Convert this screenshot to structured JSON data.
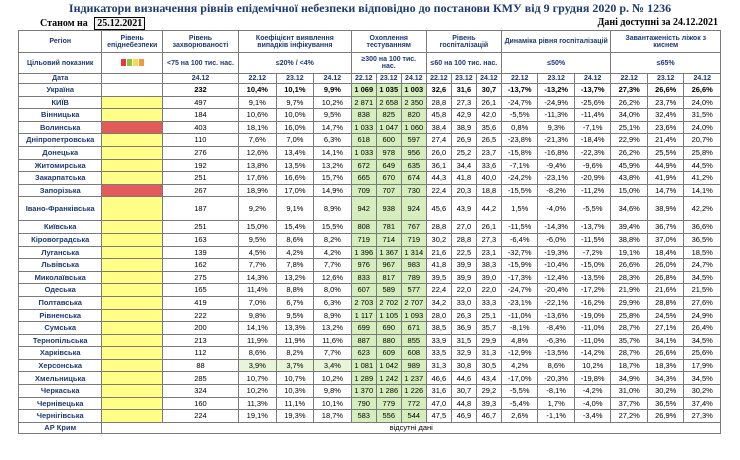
{
  "title": "Індикатори визначення рівнів епідемічної небезпеки відповідно до постанови КМУ від 9 грудня 2020 р. № 1236",
  "status": {
    "label": "Станом на",
    "date": "25.12.2021",
    "right": "Дані доступні за  24.12.2021"
  },
  "headers": {
    "region": "Регіон",
    "level": "Рівень епіднебезпеки",
    "incidence": "Рівень захворюваності",
    "detection": "Коефіцієнт виявлення випадків інфікування",
    "testing": "Охоплення тестуванням",
    "hospital": "Рівень госпіталізацій",
    "dynamics": "Динаміка рівня госпіталізацій",
    "beds": "Завантаженість ліжок з киснем"
  },
  "indicator_row": {
    "label": "Цільовий показник",
    "incidence": "<75 на 100 тис. нас.",
    "detection": "≤20% / <4%",
    "testing": "≥300 на 100 тис. нас.",
    "hospital": "≤60 на 100 тис. нас.",
    "dynamics": "≤50%",
    "beds": "≤65%",
    "level_colors": [
      "#e63b3b",
      "#8cc63f",
      "#ffd84a",
      "#f39c3b"
    ]
  },
  "date_row": {
    "label": "Дата",
    "incidence": "24.12",
    "detection": [
      "22.12",
      "23.12",
      "24.12"
    ],
    "testing": [
      "22.12",
      "23.12",
      "24.12"
    ],
    "hospital": [
      "22.12",
      "23.12",
      "24.12"
    ],
    "dynamics": [
      "22.12",
      "23.12",
      "24.12"
    ],
    "beds": [
      "22.12",
      "23.12",
      "24.12"
    ]
  },
  "rows": [
    {
      "name": "Україна",
      "level": "",
      "inc": "232",
      "det": [
        "10,4%",
        "10,1%",
        "9,9%"
      ],
      "test": [
        "1 069",
        "1 035",
        "1 003"
      ],
      "hosp": [
        "32,6",
        "31,6",
        "30,7"
      ],
      "dyn": [
        "-13,7%",
        "-13,2%",
        "-13,7%"
      ],
      "beds": [
        "27,3%",
        "26,6%",
        "26,6%"
      ]
    },
    {
      "name": "КИЇВ",
      "level": "yellow",
      "inc": "497",
      "det": [
        "9,1%",
        "9,7%",
        "10,2%"
      ],
      "test": [
        "2 871",
        "2 658",
        "2 350"
      ],
      "hosp": [
        "28,8",
        "27,3",
        "26,1"
      ],
      "dyn": [
        "-24,7%",
        "-24,9%",
        "-25,6%"
      ],
      "beds": [
        "26,2%",
        "23,7%",
        "24,0%"
      ]
    },
    {
      "name": "Вінницька",
      "level": "yellow",
      "inc": "184",
      "det": [
        "10,6%",
        "10,0%",
        "9,5%"
      ],
      "test": [
        "838",
        "825",
        "820"
      ],
      "hosp": [
        "45,8",
        "42,9",
        "42,0"
      ],
      "dyn": [
        "-5,5%",
        "-11,3%",
        "-11,4%"
      ],
      "beds": [
        "34,0%",
        "32,4%",
        "31,5%"
      ]
    },
    {
      "name": "Волинська",
      "level": "red",
      "inc": "403",
      "det": [
        "18,1%",
        "16,0%",
        "14,7%"
      ],
      "test": [
        "1 033",
        "1 047",
        "1 060"
      ],
      "hosp": [
        "38,4",
        "38,9",
        "35,6"
      ],
      "dyn": [
        "0,8%",
        "9,3%",
        "-7,1%"
      ],
      "beds": [
        "25,1%",
        "23,6%",
        "24,0%"
      ]
    },
    {
      "name": "Дніпропетровська",
      "level": "yellow",
      "inc": "110",
      "det": [
        "7,6%",
        "7,0%",
        "6,3%"
      ],
      "test": [
        "618",
        "600",
        "597"
      ],
      "hosp": [
        "27,4",
        "26,9",
        "26,5"
      ],
      "dyn": [
        "-23,8%",
        "-21,3%",
        "-18,4%"
      ],
      "beds": [
        "22,9%",
        "21,4%",
        "20,7%"
      ]
    },
    {
      "name": "Донецька",
      "level": "yellow",
      "inc": "276",
      "det": [
        "12,6%",
        "13,4%",
        "14,1%"
      ],
      "test": [
        "1 033",
        "978",
        "956"
      ],
      "hosp": [
        "26,0",
        "25,2",
        "23,7"
      ],
      "dyn": [
        "-15,8%",
        "-16,8%",
        "-22,3%"
      ],
      "beds": [
        "26,2%",
        "25,5%",
        "25,8%"
      ]
    },
    {
      "name": "Житомирська",
      "level": "yellow",
      "inc": "192",
      "det": [
        "13,8%",
        "13,5%",
        "13,2%"
      ],
      "test": [
        "672",
        "649",
        "635"
      ],
      "hosp": [
        "36,1",
        "34,4",
        "33,6"
      ],
      "dyn": [
        "-7,1%",
        "-9,4%",
        "-9,6%"
      ],
      "beds": [
        "45,9%",
        "44,9%",
        "44,5%"
      ]
    },
    {
      "name": "Закарпатська",
      "level": "yellow",
      "inc": "251",
      "det": [
        "17,6%",
        "16,6%",
        "15,7%"
      ],
      "test": [
        "665",
        "670",
        "674"
      ],
      "hosp": [
        "44,3",
        "41,8",
        "40,0"
      ],
      "dyn": [
        "-24,2%",
        "-23,1%",
        "-20,9%"
      ],
      "beds": [
        "43,8%",
        "41,9%",
        "41,2%"
      ]
    },
    {
      "name": "Запорізька",
      "level": "red",
      "inc": "267",
      "det": [
        "18,9%",
        "17,0%",
        "14,9%"
      ],
      "test": [
        "709",
        "707",
        "730"
      ],
      "hosp": [
        "22,4",
        "20,3",
        "18,8"
      ],
      "dyn": [
        "-15,5%",
        "-8,2%",
        "-11,2%"
      ],
      "beds": [
        "15,0%",
        "14,7%",
        "14,1%"
      ]
    },
    {
      "name": "Івано-Франківська",
      "level": "yellow",
      "inc": "187",
      "det": [
        "9,2%",
        "9,1%",
        "8,9%"
      ],
      "test": [
        "942",
        "938",
        "924"
      ],
      "hosp": [
        "45,6",
        "43,9",
        "44,2"
      ],
      "dyn": [
        "1,5%",
        "-4,0%",
        "-5,5%"
      ],
      "beds": [
        "34,6%",
        "38,9%",
        "42,2%"
      ],
      "tall": true
    },
    {
      "name": "Київська",
      "level": "yellow",
      "inc": "251",
      "det": [
        "15,0%",
        "15,4%",
        "15,5%"
      ],
      "test": [
        "808",
        "781",
        "767"
      ],
      "hosp": [
        "28,8",
        "27,0",
        "26,1"
      ],
      "dyn": [
        "-11,5%",
        "-14,3%",
        "-13,7%"
      ],
      "beds": [
        "39,4%",
        "36,7%",
        "36,6%"
      ]
    },
    {
      "name": "Кіровоградська",
      "level": "yellow",
      "inc": "163",
      "det": [
        "9,5%",
        "8,6%",
        "8,2%"
      ],
      "test": [
        "719",
        "714",
        "719"
      ],
      "hosp": [
        "30,2",
        "28,8",
        "27,3"
      ],
      "dyn": [
        "-6,4%",
        "-6,0%",
        "-11,5%"
      ],
      "beds": [
        "38,8%",
        "37,0%",
        "36,5%"
      ]
    },
    {
      "name": "Луганська",
      "level": "yellow",
      "inc": "139",
      "det": [
        "4,5%",
        "4,2%",
        "4,2%"
      ],
      "test": [
        "1 396",
        "1 367",
        "1 314"
      ],
      "hosp": [
        "21,6",
        "22,5",
        "23,1"
      ],
      "dyn": [
        "-32,7%",
        "-19,3%",
        "-7,2%"
      ],
      "beds": [
        "19,1%",
        "18,4%",
        "18,5%"
      ]
    },
    {
      "name": "Львівська",
      "level": "yellow",
      "inc": "162",
      "det": [
        "7,7%",
        "7,8%",
        "7,7%"
      ],
      "test": [
        "976",
        "967",
        "983"
      ],
      "hosp": [
        "41,8",
        "39,9",
        "38,3"
      ],
      "dyn": [
        "-15,9%",
        "-10,4%",
        "-15,0%"
      ],
      "beds": [
        "26,6%",
        "26,0%",
        "24,7%"
      ]
    },
    {
      "name": "Миколаївська",
      "level": "yellow",
      "inc": "275",
      "det": [
        "14,3%",
        "13,2%",
        "12,6%"
      ],
      "test": [
        "833",
        "817",
        "789"
      ],
      "hosp": [
        "39,5",
        "39,9",
        "39,0"
      ],
      "dyn": [
        "-17,3%",
        "-12,4%",
        "-13,5%"
      ],
      "beds": [
        "28,3%",
        "26,8%",
        "34,5%"
      ]
    },
    {
      "name": "Одеська",
      "level": "yellow",
      "inc": "165",
      "det": [
        "11,4%",
        "8,8%",
        "8,0%"
      ],
      "test": [
        "607",
        "589",
        "577"
      ],
      "hosp": [
        "22,4",
        "22,0",
        "22,0"
      ],
      "dyn": [
        "-24,7%",
        "-20,4%",
        "-17,2%"
      ],
      "beds": [
        "21,9%",
        "21,6%",
        "21,5%"
      ]
    },
    {
      "name": "Полтавська",
      "level": "yellow",
      "inc": "419",
      "det": [
        "7,0%",
        "6,7%",
        "6,3%"
      ],
      "test": [
        "2 703",
        "2 702",
        "2 707"
      ],
      "hosp": [
        "34,2",
        "33,0",
        "33,3"
      ],
      "dyn": [
        "-23,1%",
        "-22,1%",
        "-16,2%"
      ],
      "beds": [
        "29,9%",
        "28,8%",
        "27,6%"
      ]
    },
    {
      "name": "Рівненська",
      "level": "yellow",
      "inc": "222",
      "det": [
        "9,8%",
        "9,5%",
        "8,9%"
      ],
      "test": [
        "1 117",
        "1 105",
        "1 093"
      ],
      "hosp": [
        "28,0",
        "26,3",
        "25,1"
      ],
      "dyn": [
        "-11,0%",
        "-13,6%",
        "-19,0%"
      ],
      "beds": [
        "25,8%",
        "24,5%",
        "24,9%"
      ]
    },
    {
      "name": "Сумська",
      "level": "yellow",
      "inc": "200",
      "det": [
        "14,1%",
        "13,3%",
        "13,2%"
      ],
      "test": [
        "699",
        "690",
        "671"
      ],
      "hosp": [
        "38,5",
        "36,9",
        "35,7"
      ],
      "dyn": [
        "-8,1%",
        "-8,4%",
        "-11,0%"
      ],
      "beds": [
        "28,7%",
        "27,1%",
        "26,4%"
      ]
    },
    {
      "name": "Тернопільська",
      "level": "yellow",
      "inc": "213",
      "det": [
        "11,9%",
        "11,9%",
        "11,6%"
      ],
      "test": [
        "887",
        "880",
        "855"
      ],
      "hosp": [
        "33,9",
        "31,5",
        "29,9"
      ],
      "dyn": [
        "4,8%",
        "-6,3%",
        "-11,0%"
      ],
      "beds": [
        "35,7%",
        "34,1%",
        "34,5%"
      ]
    },
    {
      "name": "Харківська",
      "level": "yellow",
      "inc": "112",
      "det": [
        "8,6%",
        "8,2%",
        "7,7%"
      ],
      "test": [
        "623",
        "609",
        "608"
      ],
      "hosp": [
        "33,5",
        "32,9",
        "31,3"
      ],
      "dyn": [
        "-12,9%",
        "-13,5%",
        "-14,2%"
      ],
      "beds": [
        "28,7%",
        "26,6%",
        "25,6%"
      ]
    },
    {
      "name": "Херсонська",
      "level": "yellow",
      "inc": "88",
      "det": [
        "3,9%",
        "3,7%",
        "3,4%"
      ],
      "test": [
        "1 081",
        "1 042",
        "989"
      ],
      "hosp": [
        "31,3",
        "30,8",
        "30,5"
      ],
      "dyn": [
        "4,2%",
        "8,6%",
        "10,2%"
      ],
      "beds": [
        "18,7%",
        "18,3%",
        "17,9%"
      ]
    },
    {
      "name": "Хмельницька",
      "level": "yellow",
      "inc": "285",
      "det": [
        "10,7%",
        "10,7%",
        "10,2%"
      ],
      "test": [
        "1 289",
        "1 242",
        "1 237"
      ],
      "hosp": [
        "46,6",
        "44,6",
        "43,4"
      ],
      "dyn": [
        "-17,0%",
        "-20,3%",
        "-19,8%"
      ],
      "beds": [
        "34,9%",
        "34,3%",
        "34,5%"
      ]
    },
    {
      "name": "Черкаська",
      "level": "yellow",
      "inc": "324",
      "det": [
        "10,2%",
        "10,3%",
        "9,8%"
      ],
      "test": [
        "1 370",
        "1 286",
        "1 226"
      ],
      "hosp": [
        "31,6",
        "30,7",
        "29,2"
      ],
      "dyn": [
        "-5,5%",
        "-8,1%",
        "-4,2%"
      ],
      "beds": [
        "31,0%",
        "30,2%",
        "30,2%"
      ]
    },
    {
      "name": "Чернівецька",
      "level": "yellow",
      "inc": "160",
      "det": [
        "11,3%",
        "11,1%",
        "10,1%"
      ],
      "test": [
        "790",
        "779",
        "772"
      ],
      "hosp": [
        "47,0",
        "44,8",
        "39,3"
      ],
      "dyn": [
        "-5,4%",
        "1,7%",
        "-4,0%"
      ],
      "beds": [
        "37,7%",
        "36,5%",
        "37,4%"
      ]
    },
    {
      "name": "Чернігівська",
      "level": "yellow",
      "inc": "224",
      "det": [
        "19,1%",
        "19,3%",
        "18,7%"
      ],
      "test": [
        "583",
        "556",
        "544"
      ],
      "hosp": [
        "47,5",
        "46,9",
        "46,7"
      ],
      "dyn": [
        "2,6%",
        "-1,1%",
        "-3,4%"
      ],
      "beds": [
        "27,2%",
        "26,9%",
        "27,3%"
      ]
    }
  ],
  "crimea": {
    "name": "АР Крим",
    "note": "відсутні дані"
  },
  "colors": {
    "title": "#1f3a70",
    "level_yellow": "#ffff88",
    "level_red": "#e25b5b",
    "testing_green": "#d6eebd"
  }
}
